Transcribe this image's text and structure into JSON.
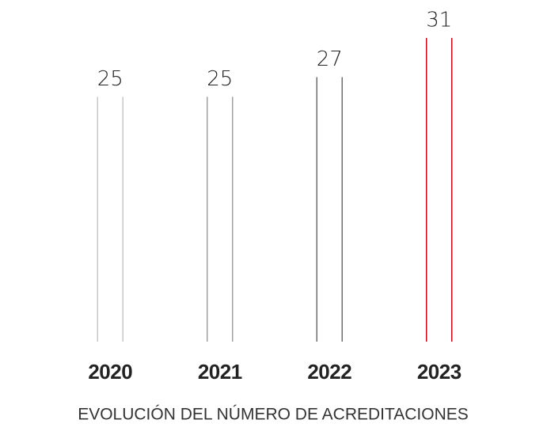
{
  "chart_data": {
    "type": "bar",
    "title": "EVOLUCIÓN DEL NÚMERO DE ACREDITACIONES",
    "categories": [
      "2020",
      "2021",
      "2022",
      "2023"
    ],
    "values": [
      25,
      25,
      27,
      31
    ],
    "colors": [
      "#c8c8c8",
      "#a0a0a0",
      "#6e6e6e",
      "#d0021b"
    ]
  }
}
